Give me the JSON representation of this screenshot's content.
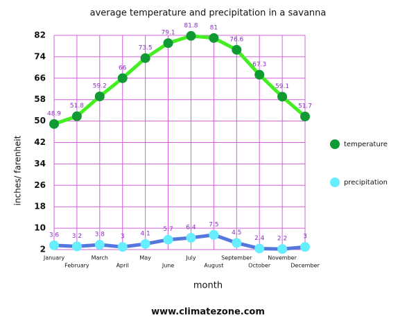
{
  "chart_data": {
    "type": "line",
    "title": "average temperature and precipitation in a savanna",
    "y_label": "inches/ farenheit",
    "x_label": "month",
    "source": "www.climatezone.com",
    "categories": [
      "January",
      "February",
      "March",
      "April",
      "May",
      "June",
      "July",
      "August",
      "September",
      "October",
      "November",
      "December"
    ],
    "series": [
      {
        "name": "temperature",
        "color": "#44ee22",
        "marker_color": "#119933",
        "values": [
          48.9,
          51.8,
          59.2,
          66,
          73.5,
          79.1,
          81.8,
          81,
          76.6,
          67.3,
          59.1,
          51.7
        ]
      },
      {
        "name": "precipitation",
        "color": "#5577dd",
        "marker_color": "#66eeff",
        "values": [
          3.6,
          3.2,
          3.8,
          3,
          4.1,
          5.7,
          6.4,
          7.5,
          4.5,
          2.4,
          2.2,
          3
        ]
      }
    ],
    "ylim": [
      2,
      82
    ],
    "yticks": [
      2,
      10,
      18,
      26,
      34,
      42,
      50,
      58,
      66,
      74,
      82
    ],
    "grid": true,
    "legend": "right"
  }
}
